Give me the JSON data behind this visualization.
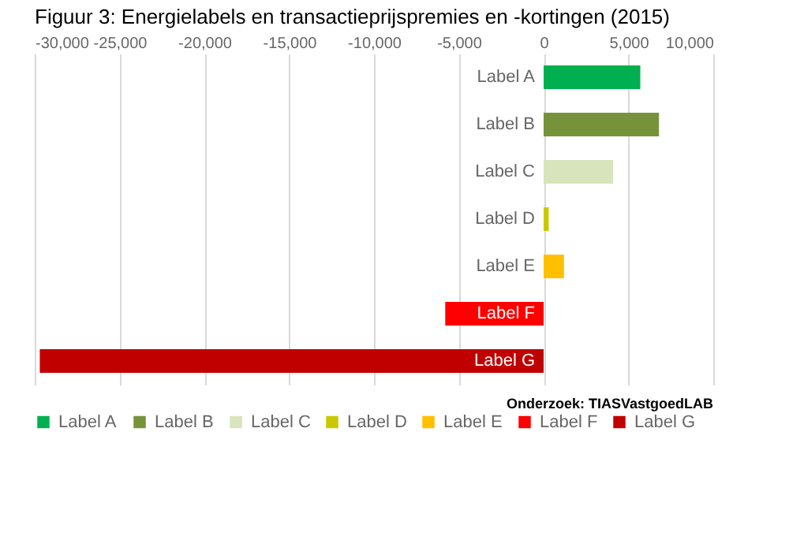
{
  "chart_data": {
    "type": "bar",
    "orientation": "horizontal",
    "title": "Figuur 3: Energielabels en transactieprijspremies en -kortingen (2015)",
    "categories": [
      "Label A",
      "Label B",
      "Label C",
      "Label D",
      "Label E",
      "Label F",
      "Label G"
    ],
    "series": [
      {
        "name": "Label A",
        "color": "#00b050",
        "values": [
          5700,
          null,
          null,
          null,
          null,
          null,
          null
        ]
      },
      {
        "name": "Label B",
        "color": "#76933c",
        "values": [
          null,
          6800,
          null,
          null,
          null,
          null,
          null
        ]
      },
      {
        "name": "Label C",
        "color": "#d8e4bc",
        "values": [
          null,
          null,
          4100,
          null,
          null,
          null,
          null
        ]
      },
      {
        "name": "Label D",
        "color": "#c9c900",
        "values": [
          null,
          null,
          null,
          300,
          null,
          null,
          null
        ]
      },
      {
        "name": "Label E",
        "color": "#ffc000",
        "values": [
          null,
          null,
          null,
          null,
          1200,
          null,
          null
        ]
      },
      {
        "name": "Label F",
        "color": "#ff0000",
        "values": [
          null,
          null,
          null,
          null,
          null,
          -5800,
          null
        ]
      },
      {
        "name": "Label G",
        "color": "#c00000",
        "values": [
          null,
          null,
          null,
          null,
          null,
          null,
          -29700
        ]
      }
    ],
    "xlim": [
      -30000,
      10000
    ],
    "xticks": [
      {
        "value": -30000,
        "label": "-30,000"
      },
      {
        "value": -25000,
        "label": "-25,000"
      },
      {
        "value": -20000,
        "label": "-20,000"
      },
      {
        "value": -15000,
        "label": "-15,000"
      },
      {
        "value": -10000,
        "label": "-10,000"
      },
      {
        "value": -5000,
        "label": "-5,000"
      },
      0,
      {
        "value": 5000,
        "label": "5,000"
      },
      {
        "value": 10000,
        "label": "10,000"
      }
    ],
    "grid": "x",
    "legend": "bottom",
    "annotations": [
      "Onderzoek: TIASVastgoedLAB"
    ]
  }
}
